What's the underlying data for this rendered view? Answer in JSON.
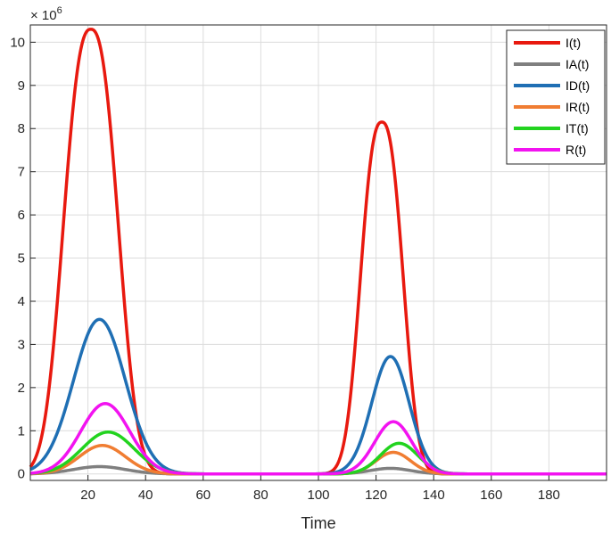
{
  "chart_data": {
    "type": "line",
    "title": "",
    "xlabel": "Time",
    "ylabel": "",
    "y_exponent_label": "× 10",
    "y_exponent_power": "6",
    "xlim": [
      0,
      200
    ],
    "ylim": [
      -0.15,
      10.4
    ],
    "xticks": [
      20,
      40,
      60,
      80,
      100,
      120,
      140,
      160,
      180
    ],
    "yticks": [
      0,
      1,
      2,
      3,
      4,
      5,
      6,
      7,
      8,
      9,
      10
    ],
    "grid": true,
    "legend_position": "top-right",
    "series": [
      {
        "name": "I(t)",
        "color": "#e8190f",
        "peaks": [
          {
            "t": 21,
            "y": 10.3,
            "s": 9,
            "p": 2.5
          },
          {
            "t": 122,
            "y": 8.15,
            "s": 7,
            "p": 2.5
          }
        ],
        "values_note": ""
      },
      {
        "name": "IA(t)",
        "color": "#7f7f7f",
        "peaks": [
          {
            "t": 24,
            "y": 0.17,
            "s": 9,
            "p": 2
          },
          {
            "t": 125,
            "y": 0.13,
            "s": 7,
            "p": 2
          }
        ]
      },
      {
        "name": "ID(t)",
        "color": "#1f6fb4",
        "peaks": [
          {
            "t": 24,
            "y": 3.58,
            "s": 9,
            "p": 2
          },
          {
            "t": 125,
            "y": 2.72,
            "s": 6.5,
            "p": 2
          }
        ]
      },
      {
        "name": "IR(t)",
        "color": "#f07d32",
        "peaks": [
          {
            "t": 25,
            "y": 0.66,
            "s": 8,
            "p": 2
          },
          {
            "t": 126,
            "y": 0.5,
            "s": 6,
            "p": 2
          }
        ]
      },
      {
        "name": "IT(t)",
        "color": "#22d31f",
        "peaks": [
          {
            "t": 27,
            "y": 0.97,
            "s": 9,
            "p": 2
          },
          {
            "t": 128,
            "y": 0.71,
            "s": 6.5,
            "p": 2
          }
        ]
      },
      {
        "name": "R(t)",
        "color": "#f213f0",
        "peaks": [
          {
            "t": 26,
            "y": 1.63,
            "s": 8.5,
            "p": 2
          },
          {
            "t": 126,
            "y": 1.21,
            "s": 6.5,
            "p": 2
          }
        ]
      }
    ]
  }
}
